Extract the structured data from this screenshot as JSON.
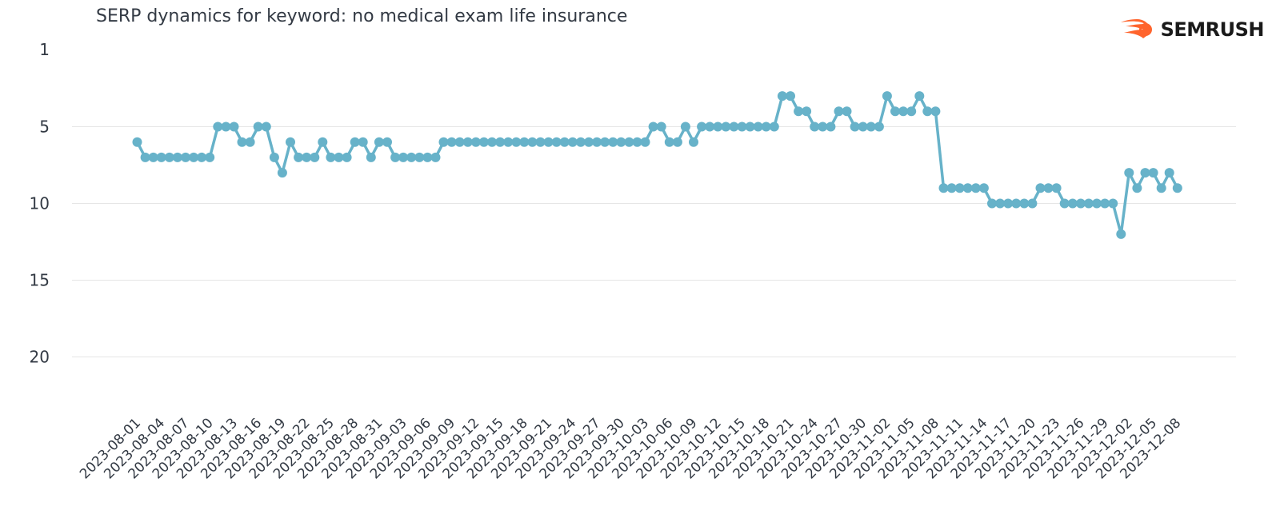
{
  "brand": {
    "name": "SEMRUSH",
    "logo_icon": "semrush-flame-icon",
    "accent": "#ff642d"
  },
  "chart_data": {
    "type": "line",
    "title": "SERP dynamics for keyword: no medical exam life insurance",
    "xlabel": "",
    "ylabel": "",
    "y_inverted": true,
    "ylim": [
      1,
      23.5
    ],
    "yticks": [
      1,
      5,
      10,
      15,
      20
    ],
    "grid": true,
    "legend": "none",
    "line_color": "#67b2c9",
    "x_tick_labels": [
      "2023-08-01",
      "2023-08-04",
      "2023-08-07",
      "2023-08-10",
      "2023-08-13",
      "2023-08-16",
      "2023-08-19",
      "2023-08-22",
      "2023-08-25",
      "2023-08-28",
      "2023-08-31",
      "2023-09-03",
      "2023-09-06",
      "2023-09-09",
      "2023-09-12",
      "2023-09-15",
      "2023-09-18",
      "2023-09-21",
      "2023-09-24",
      "2023-09-27",
      "2023-09-30",
      "2023-10-03",
      "2023-10-06",
      "2023-10-09",
      "2023-10-12",
      "2023-10-15",
      "2023-10-18",
      "2023-10-21",
      "2023-10-24",
      "2023-10-27",
      "2023-10-30",
      "2023-11-02",
      "2023-11-05",
      "2023-11-08",
      "2023-11-11",
      "2023-11-14",
      "2023-11-17",
      "2023-11-20",
      "2023-11-23",
      "2023-11-26",
      "2023-11-29",
      "2023-12-02",
      "2023-12-05",
      "2023-12-08"
    ],
    "x_start": "2023-08-01",
    "values": [
      6,
      7,
      7,
      7,
      7,
      7,
      7,
      7,
      7,
      7,
      5,
      5,
      5,
      6,
      6,
      5,
      5,
      7,
      8,
      6,
      7,
      7,
      7,
      6,
      7,
      7,
      7,
      6,
      6,
      7,
      6,
      6,
      7,
      7,
      7,
      7,
      7,
      7,
      6,
      6,
      6,
      6,
      6,
      6,
      6,
      6,
      6,
      6,
      6,
      6,
      6,
      6,
      6,
      6,
      6,
      6,
      6,
      6,
      6,
      6,
      6,
      6,
      6,
      6,
      5,
      5,
      6,
      6,
      5,
      6,
      5,
      5,
      5,
      5,
      5,
      5,
      5,
      5,
      5,
      5,
      3,
      3,
      4,
      4,
      5,
      5,
      5,
      4,
      4,
      5,
      5,
      5,
      5,
      3,
      4,
      4,
      4,
      3,
      4,
      4,
      9,
      9,
      9,
      9,
      9,
      9,
      10,
      10,
      10,
      10,
      10,
      10,
      9,
      9,
      9,
      10,
      10,
      10,
      10,
      10,
      10,
      10,
      12,
      8,
      9,
      8,
      8,
      9,
      8,
      9
    ]
  }
}
